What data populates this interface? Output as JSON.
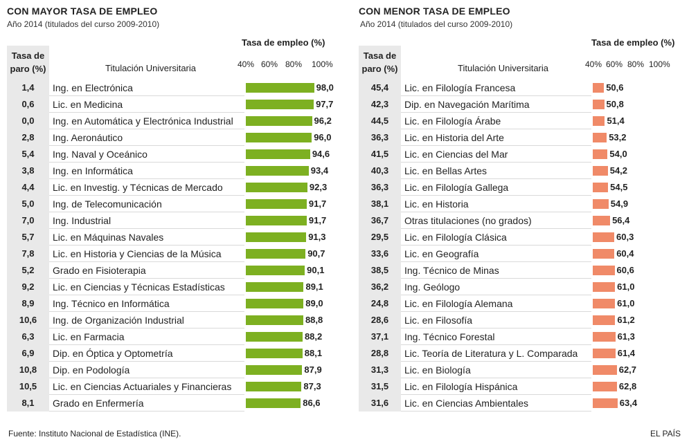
{
  "chart_data": [
    {
      "type": "bar",
      "orientation": "horizontal",
      "title": "CON MAYOR TASA DE EMPLEO",
      "subtitle": "Año 2014 (titulados del curso 2009-2010)",
      "value_label": "Tasa de empleo (%)",
      "column_labels": {
        "paro": "Tasa de paro (%)",
        "titulacion": "Titulación Universitaria"
      },
      "ticks": [
        "40%",
        "60%",
        "80%",
        "100%"
      ],
      "xlim": [
        40,
        100
      ],
      "color": "#7db021",
      "categories": [
        "Ing. en Electrónica",
        "Lic. en Medicina",
        "Ing. en Automática y Electrónica Industrial",
        "Ing. Aeronáutico",
        "Ing. Naval y Oceánico",
        "Ing. en Informática",
        "Lic. en Investig. y Técnicas de Mercado",
        "Ing. de Telecomunicación",
        "Ing. Industrial",
        "Lic. en Máquinas Navales",
        "Lic. en Historia y Ciencias de la Música",
        "Grado en Fisioterapia",
        "Lic. en Ciencias y Técnicas Estadísticas",
        "Ing. Técnico en Informática",
        "Ing. de Organización Industrial",
        "Lic. en Farmacia",
        "Dip. en Óptica y Optometría",
        "Dip. en Podología",
        "Lic. en Ciencias Actuariales y Financieras",
        "Grado en Enfermería"
      ],
      "paro": [
        "1,4",
        "0,6",
        "0,0",
        "2,8",
        "5,4",
        "3,8",
        "4,4",
        "5,0",
        "7,0",
        "5,7",
        "7,8",
        "5,2",
        "9,2",
        "8,9",
        "10,6",
        "6,3",
        "6,9",
        "10,8",
        "10,5",
        "8,1"
      ],
      "values": [
        98.0,
        97.7,
        96.2,
        96.0,
        94.6,
        93.4,
        92.3,
        91.7,
        91.7,
        91.3,
        90.7,
        90.1,
        89.1,
        89.0,
        88.8,
        88.2,
        88.1,
        87.9,
        87.3,
        86.6
      ],
      "value_labels": [
        "98,0",
        "97,7",
        "96,2",
        "96,0",
        "94,6",
        "93,4",
        "92,3",
        "91,7",
        "91,7",
        "91,3",
        "90,7",
        "90,1",
        "89,1",
        "89,0",
        "88,8",
        "88,2",
        "88,1",
        "87,9",
        "87,3",
        "86,6"
      ]
    },
    {
      "type": "bar",
      "orientation": "horizontal",
      "title": "CON MENOR TASA DE EMPLEO",
      "subtitle": "Año 2014 (titulados del curso 2009-2010)",
      "value_label": "Tasa de empleo (%)",
      "column_labels": {
        "paro": "Tasa de paro (%)",
        "titulacion": "Titulación Universitaria"
      },
      "ticks": [
        "40%",
        "60%",
        "80%",
        "100%"
      ],
      "xlim": [
        40,
        100
      ],
      "color": "#f08a68",
      "categories": [
        "Lic. en Filología Francesa",
        "Dip. en Navegación Marítima",
        "Lic. en Filología Árabe",
        "Lic. en Historia del Arte",
        "Lic. en Ciencias del Mar",
        "Lic. en Bellas Artes",
        "Lic. en Filología Gallega",
        "Lic. en Historia",
        "Otras titulaciones (no grados)",
        "Lic. en Filología Clásica",
        "Lic. en Geografía",
        "Ing. Técnico de Minas",
        "Ing. Geólogo",
        "Lic. en Filología Alemana",
        "Lic. en Filosofía",
        "Ing. Técnico Forestal",
        "Lic. Teoría de Literatura y L. Comparada",
        "Lic. en Biología",
        "Lic. en Filología Hispánica",
        "Lic. en Ciencias Ambientales"
      ],
      "paro": [
        "45,4",
        "42,3",
        "44,5",
        "36,3",
        "41,5",
        "40,3",
        "36,3",
        "38,1",
        "36,7",
        "29,5",
        "33,6",
        "38,5",
        "36,2",
        "24,8",
        "28,6",
        "37,1",
        "28,8",
        "31,3",
        "31,5",
        "31,6"
      ],
      "values": [
        50.6,
        50.8,
        51.4,
        53.2,
        54.0,
        54.2,
        54.5,
        54.9,
        56.4,
        60.3,
        60.4,
        60.6,
        61.0,
        61.0,
        61.2,
        61.3,
        61.4,
        62.7,
        62.8,
        63.4
      ],
      "value_labels": [
        "50,6",
        "50,8",
        "51,4",
        "53,2",
        "54,0",
        "54,2",
        "54,5",
        "54,9",
        "56,4",
        "60,3",
        "60,4",
        "60,6",
        "61,0",
        "61,0",
        "61,2",
        "61,3",
        "61,4",
        "62,7",
        "62,8",
        "63,4"
      ]
    }
  ],
  "footer": {
    "source": "Fuente: Instituto Nacional de Estadística (INE).",
    "brand": "EL PAÍS"
  }
}
